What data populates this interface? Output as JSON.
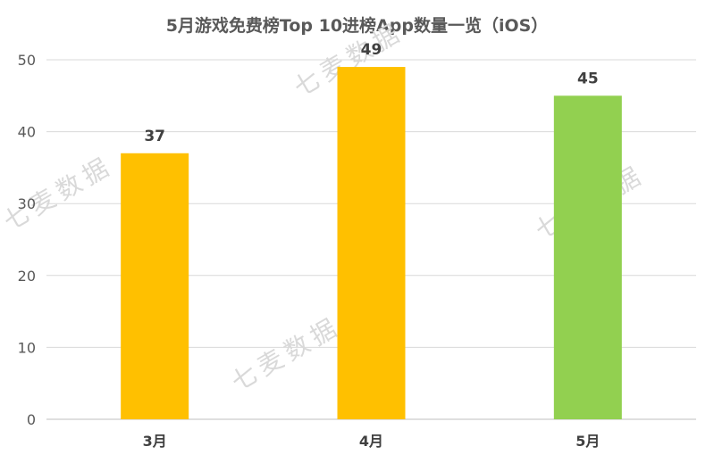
{
  "chart_data": {
    "type": "bar",
    "title": "5月游戏免费榜Top 10进榜App数量一览（iOS）",
    "categories": [
      "3月",
      "4月",
      "5月"
    ],
    "values": [
      37,
      49,
      45
    ],
    "bar_colors": [
      "#FFC000",
      "#FFC000",
      "#92D050"
    ],
    "ylim": [
      0,
      50
    ],
    "yticks": [
      0,
      10,
      20,
      30,
      40,
      50
    ],
    "grid": true,
    "legend": "none",
    "xlabel": "",
    "ylabel": ""
  },
  "watermark": {
    "text": "七麦数据"
  },
  "colors": {
    "grid": "#d9d9d9",
    "axis": "#bfbfbf"
  }
}
